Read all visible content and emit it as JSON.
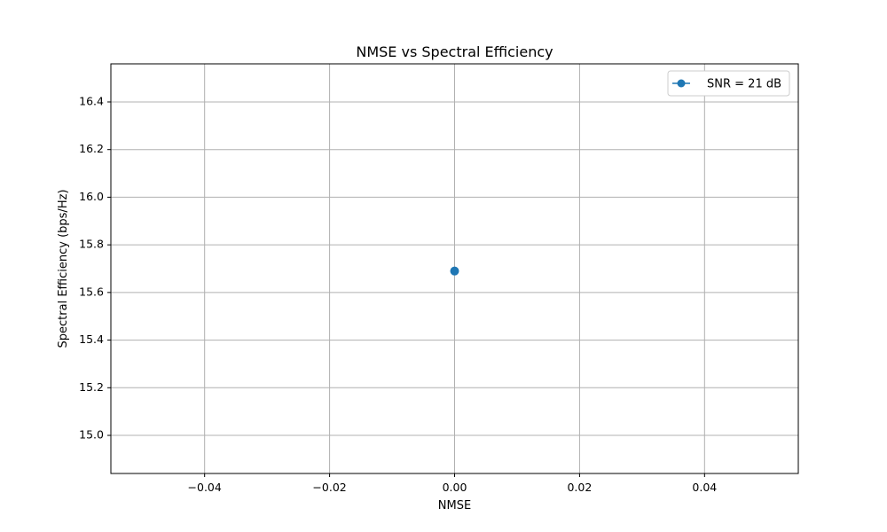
{
  "chart_data": {
    "type": "line",
    "title": "NMSE vs Spectral Efficiency",
    "xlabel": "NMSE",
    "ylabel": "Spectral Efficiency (bps/Hz)",
    "xlim": [
      -0.055,
      0.055
    ],
    "ylim": [
      14.84,
      16.56
    ],
    "xticks": [
      -0.04,
      -0.02,
      0.0,
      0.02,
      0.04
    ],
    "xtick_labels": [
      "−0.04",
      "−0.02",
      "0.00",
      "0.02",
      "0.04"
    ],
    "yticks": [
      15.0,
      15.2,
      15.4,
      15.6,
      15.8,
      16.0,
      16.2,
      16.4
    ],
    "ytick_labels": [
      "15.0",
      "15.2",
      "15.4",
      "15.6",
      "15.8",
      "16.0",
      "16.2",
      "16.4"
    ],
    "grid": true,
    "legend_position": "top-right",
    "series": [
      {
        "name": "SNR = 21 dB",
        "color": "#1f77b4",
        "marker": "circle",
        "x": [
          0.0
        ],
        "y": [
          15.69
        ]
      }
    ]
  }
}
